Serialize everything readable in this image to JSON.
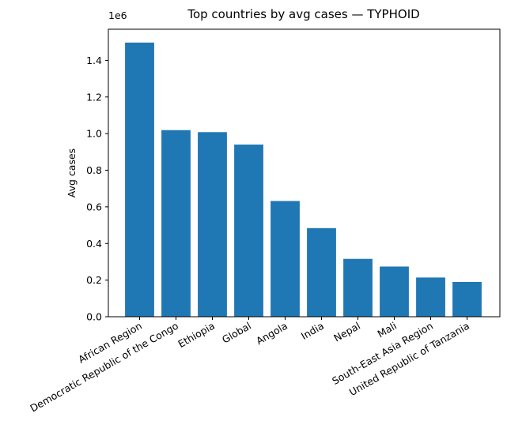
{
  "chart_data": {
    "type": "bar",
    "title": "Top countries by avg cases — TYPHOID",
    "xlabel": "",
    "ylabel": "Avg cases",
    "y_offset_label": "1e6",
    "ylim": [
      0,
      1.57
    ],
    "yticks": [
      0.0,
      0.2,
      0.4,
      0.6,
      0.8,
      1.0,
      1.2,
      1.4
    ],
    "ytick_labels": [
      "0.0",
      "0.2",
      "0.4",
      "0.6",
      "0.8",
      "1.0",
      "1.2",
      "1.4"
    ],
    "y_scale_multiplier": 1000000,
    "categories": [
      "African Region",
      "Democratic Republic of the Congo",
      "Ethiopia",
      "Global",
      "Angola",
      "India",
      "Nepal",
      "Mali",
      "South-East Asia Region",
      "United Republic of Tanzania"
    ],
    "values": [
      1.497,
      1.019,
      1.008,
      0.94,
      0.632,
      0.484,
      0.316,
      0.274,
      0.214,
      0.19
    ],
    "bar_color": "#1f77b4",
    "grid": false
  }
}
